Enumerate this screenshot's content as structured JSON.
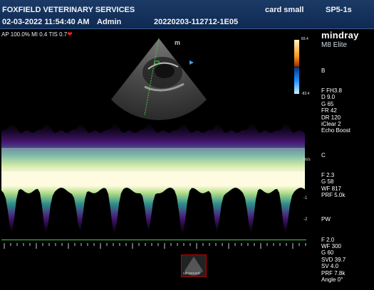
{
  "header": {
    "clinic": "FOXFIELD VETERINARY SERVICES",
    "preset": "card small",
    "probe": "SP5-1s",
    "datetime": "02-03-2022 11:54:40 AM",
    "operator": "Admin",
    "study_id": "20220203-112712-1E05"
  },
  "acoustic": {
    "ap": "AP 100.0%",
    "mi": "MI 0.4",
    "tis": "TIS 0.7",
    "heart_icon": "heart-icon"
  },
  "brand": {
    "name": "mindray",
    "model": "M8 Elite"
  },
  "colorbar": {
    "top": "83.4",
    "bottom": "-83.4"
  },
  "params": {
    "b_title": "B",
    "b": [
      "F FH3.8",
      "D 9.0",
      "G 65",
      "FR 42",
      "DR 120",
      "iClear 2",
      "Echo Boost"
    ],
    "c_title": "C",
    "c": [
      "F 2.3",
      "G 58",
      "WF 817",
      "PRF 5.0k"
    ],
    "pw_title": "PW",
    "pw": [
      "F 2.0",
      "WF 300",
      "G 60",
      "SVD 39.7",
      "SV 4.0",
      "PRF 7.8k",
      "Angle 0°"
    ]
  },
  "scale": {
    "unit": "m/s",
    "labels": [
      "-1",
      "-2"
    ]
  },
  "thumbnail": {
    "label": "ultrasound"
  },
  "colors": {
    "header_bg": "#1b3a66",
    "baseline": "#3fd03f",
    "heart": "#e22222"
  }
}
